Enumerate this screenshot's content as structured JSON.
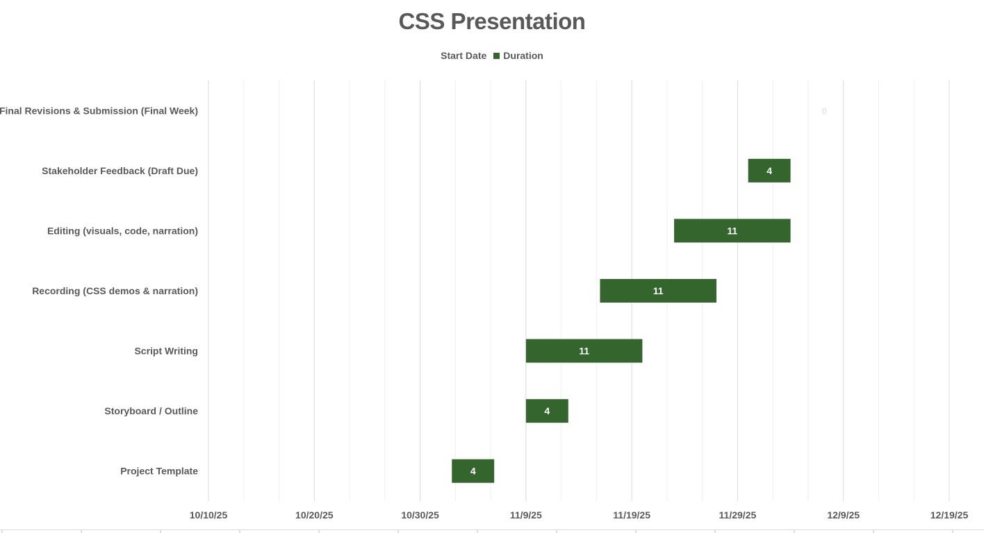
{
  "chart_data": {
    "type": "bar",
    "orientation": "horizontal",
    "stacked": true,
    "title": "CSS Presentation",
    "legend": [
      "Start Date",
      "Duration"
    ],
    "legend_position": "top",
    "categories": [
      "Project Template",
      "Storyboard / Outline",
      "Script Writing",
      "Recording (CSS demos & narration)",
      "Editing (visuals, code, narration)",
      "Stakeholder Feedback (Draft Due)",
      "Final Revisions & Submission (Final Week)"
    ],
    "series": [
      {
        "name": "Start Date",
        "values": [
          "2025-11-02",
          "2025-11-09",
          "2025-11-09",
          "2025-11-16",
          "2025-11-23",
          "2025-11-30",
          "2025-12-07"
        ],
        "color": "#ffffff",
        "visible": false
      },
      {
        "name": "Duration",
        "values": [
          4,
          4,
          11,
          11,
          11,
          4,
          0
        ],
        "color": "#33652d"
      }
    ],
    "x_tick_labels": [
      "10/10/25",
      "10/20/25",
      "10/30/25",
      "11/9/25",
      "11/19/25",
      "11/29/25",
      "12/9/25",
      "12/19/25"
    ],
    "xlim": [
      "2025-10-10",
      "2025-12-19"
    ],
    "grid": true
  }
}
